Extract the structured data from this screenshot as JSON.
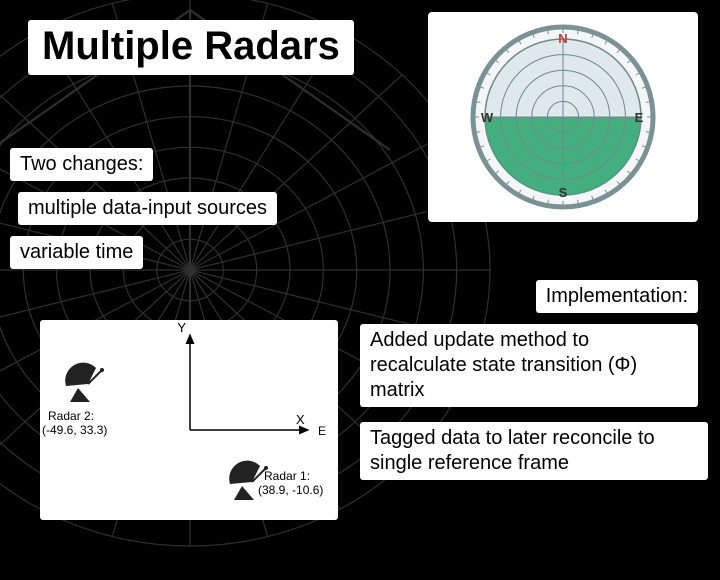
{
  "title": "Multiple Radars",
  "boxes": {
    "two_changes": "Two changes:",
    "multiple": "multiple data-input sources",
    "variable": "variable time",
    "implementation": "Implementation:",
    "added": "Added update method to recalculate state transition (Φ) matrix",
    "tagged": "Tagged data to later reconcile to single reference frame"
  },
  "radar_scope": {
    "labels": {
      "n": "N",
      "s": "S",
      "e": "E",
      "w": "W"
    },
    "ring_color": "#6d8a8e",
    "face_color": "#dfe8ea",
    "sector_color": "#2aa36b",
    "outer_border": "#7a9196",
    "sector_start_deg": 90,
    "sector_end_deg": 270,
    "rings": 5
  },
  "diagram": {
    "axis_labels": {
      "x": "X",
      "y": "Y",
      "east": "E"
    },
    "radar1": {
      "name": "Radar 1:",
      "coords": "(38.9, -10.6)"
    },
    "radar2": {
      "name": "Radar 2:",
      "coords": "(-49.6, 33.3)"
    },
    "colors": {
      "axis": "#000000",
      "text": "#000000",
      "dish": "#222222"
    }
  },
  "bg_dish": {
    "grid_color": "#888888",
    "line_width": 1.2,
    "radial_lines": 24,
    "rings": 9
  }
}
